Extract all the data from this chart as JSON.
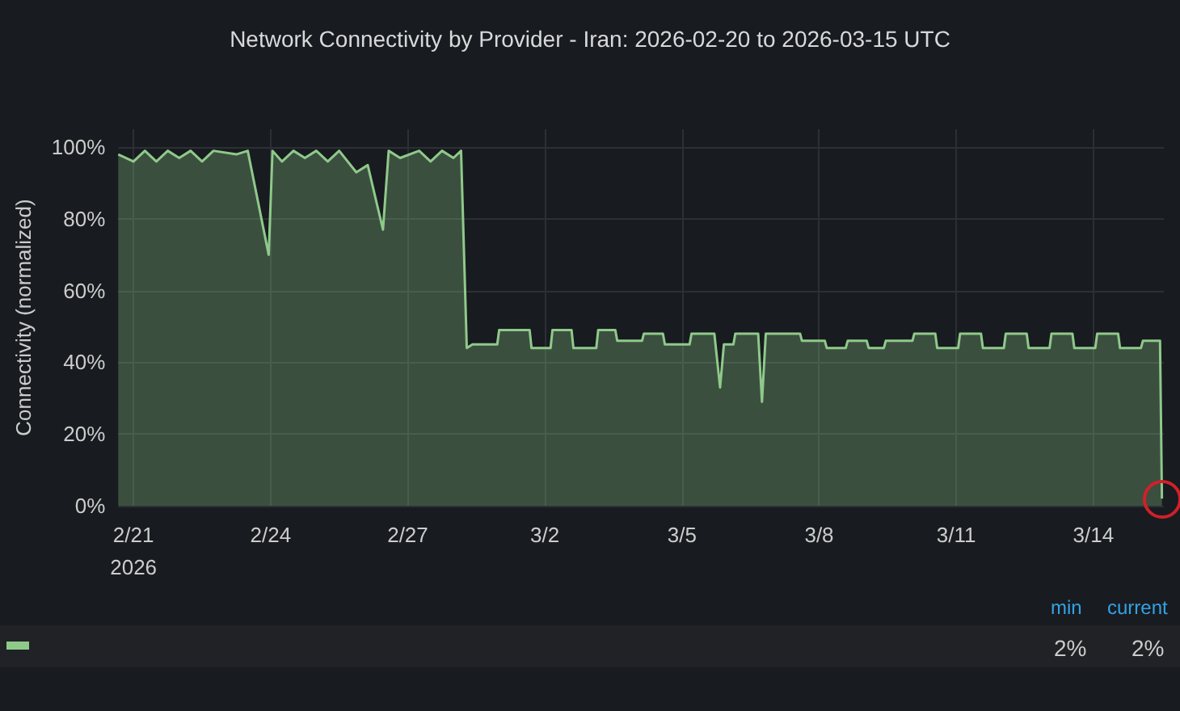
{
  "chart_data": {
    "type": "area",
    "title": "Network Connectivity by Provider - Iran: 2026-02-20 to 2026-03-15 UTC",
    "ylabel": "Connectivity (normalized)",
    "x": [
      "2026-02-20T16:00",
      "2026-02-21T00:00",
      "2026-02-21T06:00",
      "2026-02-21T12:00",
      "2026-02-21T18:00",
      "2026-02-22T00:00",
      "2026-02-22T06:00",
      "2026-02-22T12:00",
      "2026-02-22T18:00",
      "2026-02-23T06:00",
      "2026-02-23T12:00",
      "2026-02-23T23:00",
      "2026-02-24T01:00",
      "2026-02-24T06:00",
      "2026-02-24T12:00",
      "2026-02-24T18:00",
      "2026-02-25T00:00",
      "2026-02-25T06:00",
      "2026-02-25T12:00",
      "2026-02-25T21:00",
      "2026-02-26T03:00",
      "2026-02-26T11:00",
      "2026-02-26T14:00",
      "2026-02-26T20:00",
      "2026-02-27T06:00",
      "2026-02-27T12:00",
      "2026-02-27T18:00",
      "2026-02-28T00:00",
      "2026-02-28T04:00",
      "2026-02-28T07:00",
      "2026-02-28T10:00",
      "2026-02-28T23:00",
      "2026-03-01T00:00",
      "2026-03-01T16:00",
      "2026-03-01T17:00",
      "2026-03-02T03:00",
      "2026-03-02T04:00",
      "2026-03-02T14:00",
      "2026-03-02T15:00",
      "2026-03-03T03:00",
      "2026-03-03T04:00",
      "2026-03-03T13:00",
      "2026-03-03T14:00",
      "2026-03-04T03:00",
      "2026-03-04T04:00",
      "2026-03-04T14:00",
      "2026-03-04T15:00",
      "2026-03-05T04:00",
      "2026-03-05T05:00",
      "2026-03-05T17:00",
      "2026-03-05T20:00",
      "2026-03-05T22:00",
      "2026-03-06T03:00",
      "2026-03-06T04:00",
      "2026-03-06T16:00",
      "2026-03-06T18:00",
      "2026-03-06T20:00",
      "2026-03-07T14:00",
      "2026-03-07T15:00",
      "2026-03-08T03:00",
      "2026-03-08T04:00",
      "2026-03-08T14:00",
      "2026-03-08T15:00",
      "2026-03-09T01:00",
      "2026-03-09T02:00",
      "2026-03-09T10:00",
      "2026-03-09T11:00",
      "2026-03-10T01:00",
      "2026-03-10T02:00",
      "2026-03-10T13:00",
      "2026-03-10T14:00",
      "2026-03-11T01:00",
      "2026-03-11T02:00",
      "2026-03-11T13:00",
      "2026-03-11T14:00",
      "2026-03-12T01:00",
      "2026-03-12T02:00",
      "2026-03-12T13:00",
      "2026-03-12T14:00",
      "2026-03-13T01:00",
      "2026-03-13T02:00",
      "2026-03-13T13:00",
      "2026-03-13T14:00",
      "2026-03-14T01:00",
      "2026-03-14T02:00",
      "2026-03-14T13:00",
      "2026-03-14T14:00",
      "2026-03-15T01:00",
      "2026-03-15T02:00",
      "2026-03-15T11:00",
      "2026-03-15T12:00"
    ],
    "series": [
      {
        "color": "#8fc98a",
        "values": [
          98,
          96,
          99,
          96,
          99,
          97,
          99,
          96,
          99,
          98,
          99,
          70,
          99,
          96,
          99,
          97,
          99,
          96,
          99,
          93,
          95,
          77,
          99,
          97,
          99,
          96,
          99,
          97,
          99,
          44,
          45,
          45,
          49,
          49,
          44,
          44,
          49,
          49,
          44,
          44,
          49,
          49,
          46,
          46,
          48,
          48,
          45,
          45,
          48,
          48,
          33,
          45,
          45,
          48,
          48,
          29,
          48,
          48,
          46,
          46,
          44,
          44,
          46,
          46,
          44,
          44,
          46,
          46,
          48,
          48,
          44,
          44,
          48,
          48,
          44,
          44,
          48,
          48,
          44,
          44,
          48,
          48,
          44,
          44,
          48,
          48,
          44,
          44,
          46,
          46,
          2
        ]
      }
    ],
    "xlim": [
      "2026-02-20T16:00",
      "2026-03-15T13:00"
    ],
    "xticks": [
      {
        "value": "2026-02-21",
        "label": "2/21\n2026"
      },
      {
        "value": "2026-02-24",
        "label": "2/24"
      },
      {
        "value": "2026-02-27",
        "label": "2/27"
      },
      {
        "value": "2026-03-02",
        "label": "3/2"
      },
      {
        "value": "2026-03-05",
        "label": "3/5"
      },
      {
        "value": "2026-03-08",
        "label": "3/8"
      },
      {
        "value": "2026-03-11",
        "label": "3/11"
      },
      {
        "value": "2026-03-14",
        "label": "3/14"
      }
    ],
    "ylim": [
      0,
      105
    ],
    "yticks": [
      {
        "value": 0,
        "label": "0%"
      },
      {
        "value": 20,
        "label": "20%"
      },
      {
        "value": 40,
        "label": "40%"
      },
      {
        "value": 60,
        "label": "60%"
      },
      {
        "value": 80,
        "label": "80%"
      },
      {
        "value": 100,
        "label": "100%"
      }
    ],
    "grid": true,
    "marker": "none",
    "annotations": [
      "min",
      "current",
      "2%",
      "2%"
    ]
  }
}
